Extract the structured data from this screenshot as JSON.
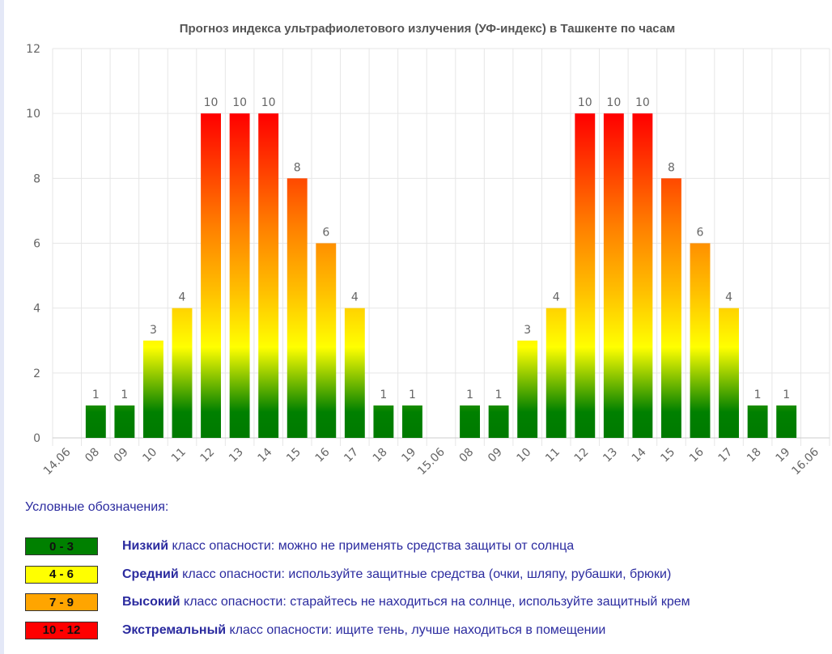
{
  "chart_data": {
    "type": "bar",
    "title": "Прогноз индекса ультрафиолетового излучения (УФ-индекс) в Ташкенте по часам",
    "xlabel": "",
    "ylabel": "",
    "ylim": [
      0,
      12
    ],
    "yticks": [
      0,
      2,
      4,
      6,
      8,
      10,
      12
    ],
    "grid": true,
    "categories": [
      "14.06",
      "08",
      "09",
      "10",
      "11",
      "12",
      "13",
      "14",
      "15",
      "16",
      "17",
      "18",
      "19",
      "15.06",
      "08",
      "09",
      "10",
      "11",
      "12",
      "13",
      "14",
      "15",
      "16",
      "17",
      "18",
      "19",
      "16.06"
    ],
    "values": [
      null,
      1,
      1,
      3,
      4,
      10,
      10,
      10,
      8,
      6,
      4,
      1,
      1,
      null,
      1,
      1,
      3,
      4,
      10,
      10,
      10,
      8,
      6,
      4,
      1,
      1,
      null
    ],
    "bar_gradient": {
      "bottom": "#007a00",
      "middle": "#ffff00",
      "upper": "#ff8c00",
      "top": "#ff0000"
    }
  },
  "legend": {
    "title": "Условные обозначения:",
    "items": [
      {
        "range": "0 - 3",
        "color": "#008000",
        "class_name": "Низкий",
        "text": " класс опасности: можно не применять средства защиты от солнца"
      },
      {
        "range": "4 - 6",
        "color": "#ffff00",
        "class_name": "Средний",
        "text": " класс опасности: используйте защитные средства (очки, шляпу, рубашки, брюки)"
      },
      {
        "range": "7 - 9",
        "color": "#ffa500",
        "class_name": "Высокий",
        "text": " класс опасности: старайтесь не находиться на солнце, используйте защитный крем"
      },
      {
        "range": "10 - 12",
        "color": "#ff0000",
        "class_name": "Экстремальный",
        "text": " класс опасности: ищите тень, лучше находиться в помещении"
      }
    ]
  }
}
